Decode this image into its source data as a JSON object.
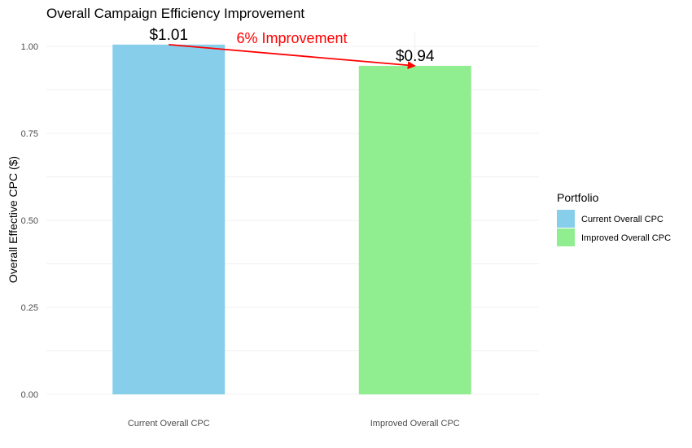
{
  "chart_data": {
    "type": "bar",
    "title": "Overall Campaign Efficiency Improvement",
    "xlabel": "",
    "ylabel": "Overall Effective CPC ($)",
    "categories": [
      "Current Overall CPC",
      "Improved Overall CPC"
    ],
    "values": [
      1.005,
      0.944
    ],
    "data_labels": [
      "$1.01",
      "$0.94"
    ],
    "colors": [
      "#87ceeb",
      "#90ee90"
    ],
    "ylim": [
      0,
      1.0
    ],
    "yticks": [
      0.0,
      0.25,
      0.5,
      0.75,
      1.0
    ],
    "ytick_labels": [
      "0.00",
      "0.25",
      "0.50",
      "0.75",
      "1.00"
    ],
    "grid": true,
    "legend": {
      "title": "Portfolio",
      "position": "right",
      "entries": [
        "Current Overall CPC",
        "Improved Overall CPC"
      ]
    },
    "annotation": {
      "text": "6% Improvement",
      "color": "#ff0000",
      "arrow_from": "Current Overall CPC",
      "arrow_to": "Improved Overall CPC"
    }
  }
}
